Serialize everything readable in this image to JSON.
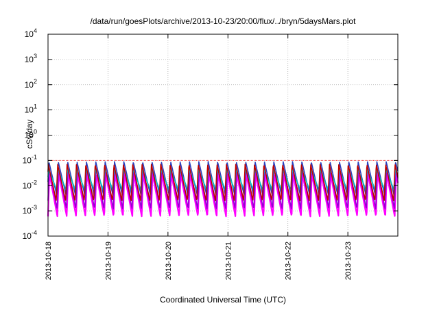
{
  "chart_data": {
    "type": "line",
    "title": "/data/run/goesPlots/archive/2013-10-23/20:00/flux/../bryn/5daysMars.plot",
    "xlabel": "Coordinated Universal Time (UTC)",
    "ylabel": "cSv/day",
    "y_scale": "log",
    "ylim_exponents": [
      -4,
      4
    ],
    "y_tick_base": "10",
    "y_tick_exponents": [
      "-4",
      "-3",
      "-2",
      "-1",
      "0",
      "1",
      "2",
      "3",
      "4"
    ],
    "x_ticks": [
      "2013-10-18",
      "2013-10-19",
      "2013-10-20",
      "2013-10-21",
      "2013-10-22",
      "2013-10-23"
    ],
    "xlim": [
      "2013-10-18T00:00",
      "2013-10-23T20:00"
    ],
    "grid": true,
    "cycles_per_day": 6.4,
    "series": [
      {
        "color": "#ff00ff",
        "peak": 0.03,
        "trough": 0.0006
      },
      {
        "color": "#9400d3",
        "peak": 0.05,
        "trough": 0.0012
      },
      {
        "color": "#2b3fbf",
        "peak": 0.09,
        "trough": 0.004
      },
      {
        "color": "#00c0c0",
        "peak": 0.045,
        "trough": 0.007
      },
      {
        "color": "#c00000",
        "peak": 0.07,
        "trough": 0.0025
      }
    ],
    "reference_line": {
      "value": 0.1,
      "color": "#ff4040"
    }
  }
}
